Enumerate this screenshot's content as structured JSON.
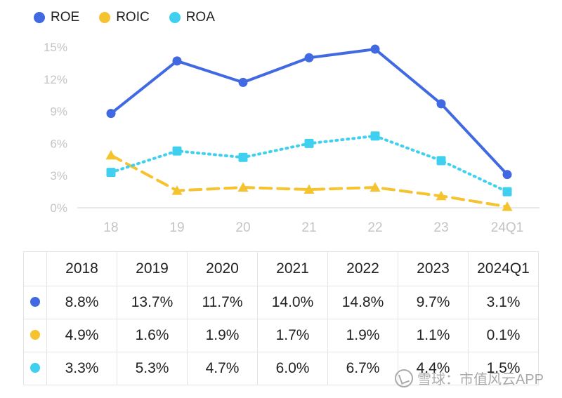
{
  "chart_data": {
    "type": "line",
    "categories": [
      "18",
      "19",
      "20",
      "21",
      "22",
      "23",
      "24Q1"
    ],
    "y_ticks": [
      "0%",
      "3%",
      "6%",
      "9%",
      "12%",
      "15%"
    ],
    "ylim": [
      0,
      15
    ],
    "grid": false,
    "legend_position": "top-left",
    "series": [
      {
        "name": "ROE",
        "values": [
          8.8,
          13.7,
          11.7,
          14.0,
          14.8,
          9.7,
          3.1
        ],
        "color": "#4169e1",
        "style": "solid",
        "marker": "circle"
      },
      {
        "name": "ROIC",
        "values": [
          4.9,
          1.6,
          1.9,
          1.7,
          1.9,
          1.1,
          0.1
        ],
        "color": "#f5c230",
        "style": "dashed",
        "marker": "triangle"
      },
      {
        "name": "ROA",
        "values": [
          3.3,
          5.3,
          4.7,
          6.0,
          6.7,
          4.4,
          1.5
        ],
        "color": "#3fd0ef",
        "style": "dotted",
        "marker": "square"
      }
    ]
  },
  "table": {
    "headers": [
      "2018",
      "2019",
      "2020",
      "2021",
      "2022",
      "2023",
      "2024Q1"
    ],
    "rows": [
      {
        "series": "ROE",
        "color": "#4169e1",
        "cells": [
          "8.8%",
          "13.7%",
          "11.7%",
          "14.0%",
          "14.8%",
          "9.7%",
          "3.1%"
        ]
      },
      {
        "series": "ROIC",
        "color": "#f5c230",
        "cells": [
          "4.9%",
          "1.6%",
          "1.9%",
          "1.7%",
          "1.9%",
          "1.1%",
          "0.1%"
        ]
      },
      {
        "series": "ROA",
        "color": "#3fd0ef",
        "cells": [
          "3.3%",
          "5.3%",
          "4.7%",
          "6.0%",
          "6.7%",
          "4.4%",
          "1.5%"
        ]
      }
    ]
  },
  "watermark": {
    "text": "雪球：市值风云APP",
    "icon": "snowball-logo-icon"
  }
}
